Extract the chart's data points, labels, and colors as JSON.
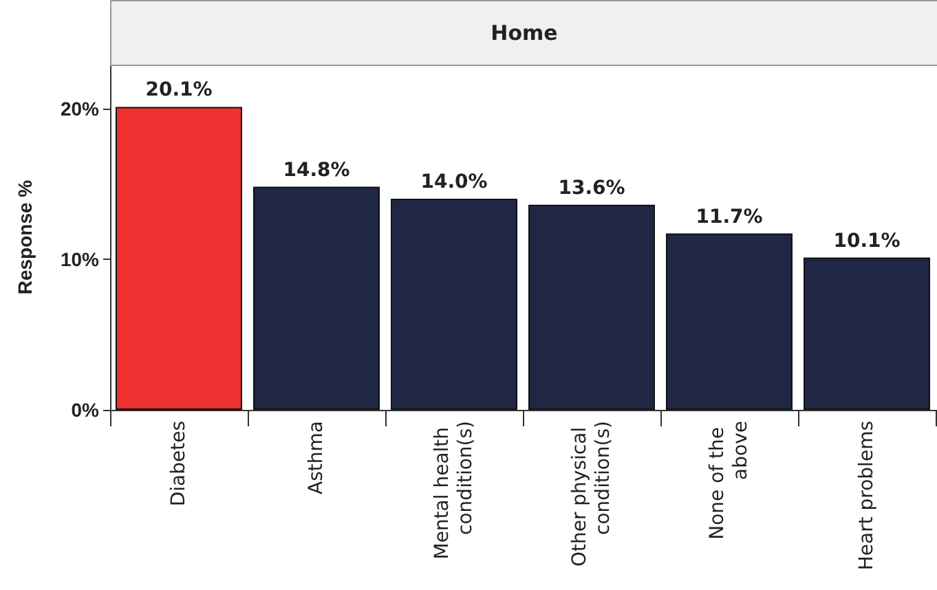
{
  "chart_data": {
    "type": "bar",
    "title": "Home",
    "ylabel": "Response %",
    "categories": [
      "Diabetes",
      "Asthma",
      "Mental health condition(s)",
      "Other physical condition(s)",
      "None of the above",
      "Heart problems"
    ],
    "values": [
      20.1,
      14.8,
      14.0,
      13.6,
      11.7,
      10.1
    ],
    "colors": [
      "#ee3130",
      "#1f2744",
      "#1f2744",
      "#1f2744",
      "#1f2744",
      "#1f2744"
    ],
    "value_labels": [
      "20.1%",
      "14.8%",
      "14.0%",
      "13.6%",
      "11.7%",
      "10.1%"
    ],
    "ylim": [
      0,
      22.9
    ],
    "yticks": [
      {
        "value": 0,
        "label": "0%"
      },
      {
        "value": 10,
        "label": "10%"
      },
      {
        "value": 20,
        "label": "20%"
      }
    ],
    "grid": false
  }
}
